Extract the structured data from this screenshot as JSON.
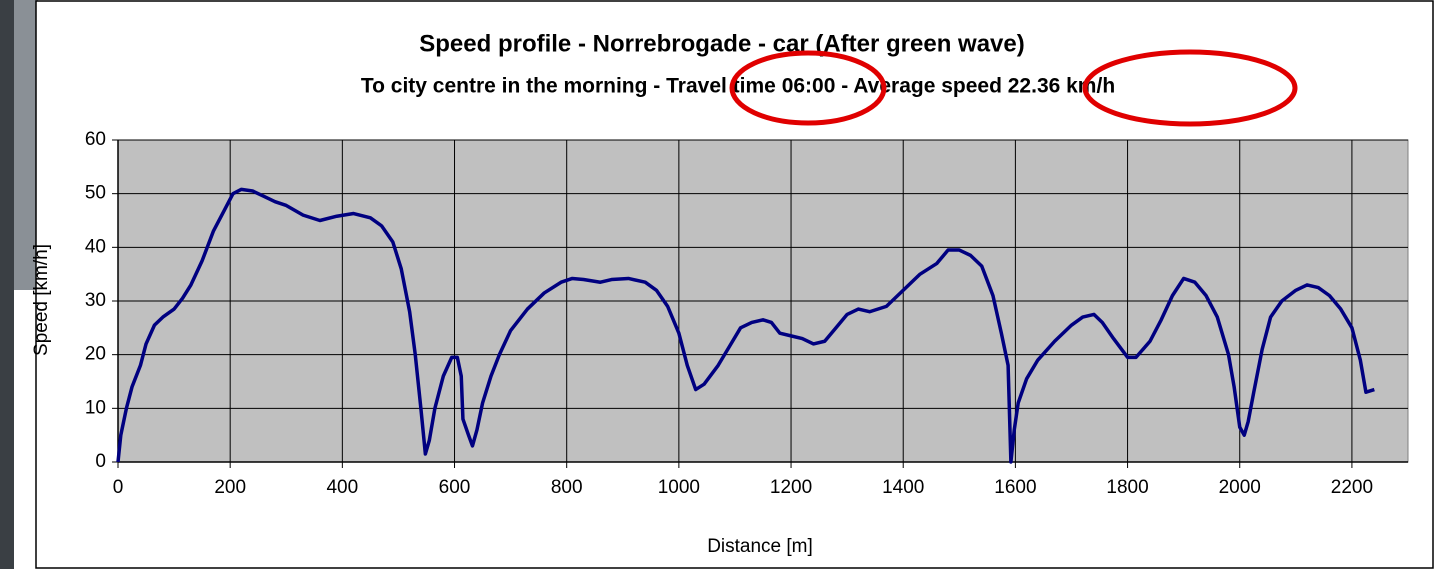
{
  "chart_data": {
    "type": "line",
    "title": "Speed profile - Norrebrogade - car (After green wave)",
    "subtitle": "To city centre in the morning - Travel time 06:00 - Average speed 22.36 km/h",
    "x_label": "Distance [m]",
    "y_label": "Speed [km/h]",
    "x": [
      0,
      5,
      15,
      25,
      40,
      50,
      65,
      80,
      100,
      115,
      130,
      150,
      170,
      190,
      205,
      220,
      240,
      260,
      280,
      300,
      330,
      360,
      390,
      420,
      450,
      470,
      490,
      505,
      520,
      530,
      540,
      548,
      555,
      565,
      580,
      595,
      605,
      612,
      615,
      625,
      632,
      640,
      650,
      665,
      680,
      700,
      730,
      760,
      790,
      810,
      830,
      860,
      880,
      910,
      940,
      960,
      980,
      1000,
      1015,
      1030,
      1045,
      1070,
      1090,
      1110,
      1130,
      1150,
      1165,
      1180,
      1200,
      1220,
      1240,
      1260,
      1280,
      1300,
      1320,
      1340,
      1370,
      1400,
      1430,
      1460,
      1480,
      1500,
      1520,
      1540,
      1560,
      1575,
      1587,
      1592,
      1598,
      1605,
      1620,
      1640,
      1670,
      1700,
      1720,
      1740,
      1755,
      1775,
      1800,
      1815,
      1840,
      1860,
      1880,
      1900,
      1920,
      1940,
      1960,
      1980,
      1990,
      2000,
      2008,
      2015,
      2025,
      2040,
      2055,
      2075,
      2100,
      2120,
      2140,
      2160,
      2180,
      2200,
      2215,
      2225,
      2240
    ],
    "values": [
      0,
      5,
      10,
      14,
      18,
      22,
      25.5,
      27,
      28.5,
      30.5,
      33,
      37.5,
      43,
      47,
      50,
      50.8,
      50.5,
      49.5,
      48.5,
      47.8,
      46,
      45,
      45.8,
      46.3,
      45.5,
      44,
      41,
      36,
      28,
      20,
      10,
      1.5,
      4,
      10,
      16,
      19.5,
      19.5,
      16,
      8,
      5,
      3,
      6,
      11,
      16,
      20,
      24.5,
      28.5,
      31.5,
      33.5,
      34.2,
      34,
      33.5,
      34,
      34.2,
      33.5,
      32,
      29,
      24,
      18,
      13.5,
      14.5,
      18,
      21.5,
      25,
      26,
      26.5,
      26,
      24,
      23.5,
      23,
      22,
      22.5,
      25,
      27.5,
      28.5,
      28,
      29,
      32,
      35,
      37,
      39.5,
      39.5,
      38.5,
      36.5,
      31,
      24,
      18,
      0,
      6,
      11,
      15.5,
      19,
      22.5,
      25.5,
      27,
      27.5,
      26,
      23,
      19.5,
      19.5,
      22.5,
      26.5,
      31,
      34.2,
      33.5,
      31,
      27,
      20,
      14,
      6.5,
      5,
      7.5,
      13,
      21,
      27,
      30,
      32,
      33,
      32.5,
      31,
      28.5,
      25,
      19,
      13,
      13.5
    ],
    "color": "#000080",
    "xlim": [
      0,
      2300
    ],
    "xticks": [
      0,
      200,
      400,
      600,
      800,
      1000,
      1200,
      1400,
      1600,
      1800,
      2000,
      2200
    ],
    "ylim": [
      0,
      60
    ],
    "yticks": [
      0,
      10,
      20,
      30,
      40,
      50,
      60
    ],
    "grid": true
  }
}
